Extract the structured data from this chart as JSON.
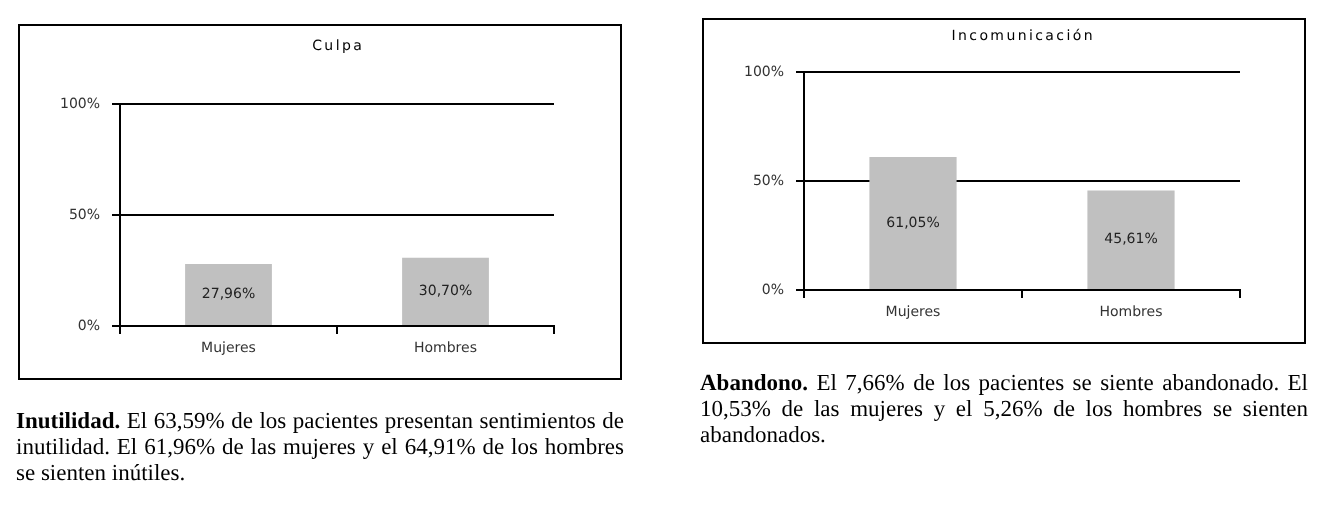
{
  "chart_data": [
    {
      "type": "bar",
      "title": "Culpa",
      "categories": [
        "Mujeres",
        "Hombres"
      ],
      "values": [
        27.96,
        30.7
      ],
      "color": "#c0c0c0",
      "value_labels": [
        "27,96%",
        "30,70%"
      ],
      "ylim": [
        0,
        100
      ],
      "yticks": [
        {
          "value": 0,
          "label": "0%"
        },
        {
          "value": 50,
          "label": "50%"
        },
        {
          "value": 100,
          "label": "100%"
        }
      ],
      "grid": "y",
      "legend": false,
      "annotations": [
        "Inutilidad.",
        "El 63,59% de los pacientes presentan sentimientos de inutilidad. El 61,96% de las mujeres y el 64,91% de los hombres se sienten inútiles."
      ]
    },
    {
      "type": "bar",
      "title": "Incomunicación",
      "categories": [
        "Mujeres",
        "Hombres"
      ],
      "values": [
        61.05,
        45.61
      ],
      "color": "#c0c0c0",
      "value_labels": [
        "61,05%",
        "45,61%"
      ],
      "ylim": [
        0,
        100
      ],
      "yticks": [
        {
          "value": 0,
          "label": "0%"
        },
        {
          "value": 50,
          "label": "50%"
        },
        {
          "value": 100,
          "label": "100%"
        }
      ],
      "grid": "y",
      "legend": false,
      "annotations": [
        "Abandono.",
        "El 7,66% de los pacientes se siente abandonado. El 10,53% de las mujeres y el 5,26% de los hombres se sienten abandonados."
      ]
    }
  ]
}
